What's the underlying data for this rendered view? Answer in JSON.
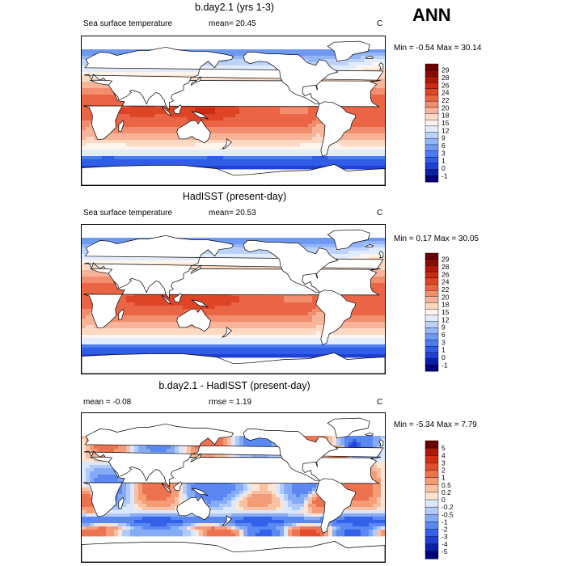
{
  "season": "ANN",
  "colors": {
    "full_palette": [
      "#00007a",
      "#0a1fa6",
      "#1f3fd6",
      "#2f5de8",
      "#4c7cf0",
      "#6f9af4",
      "#94b6f8",
      "#bcd2fb",
      "#e2ecfd",
      "#fff5ec",
      "#fcd9c2",
      "#f8b498",
      "#f28d6e",
      "#ea6545",
      "#de4426",
      "#cc2a12",
      "#b01806",
      "#8a0a00",
      "#6b0000"
    ],
    "diff_palette": [
      "#00007a",
      "#0a1fa6",
      "#1f3fd6",
      "#3361ea",
      "#5a87f1",
      "#85aaf6",
      "#b1cafa",
      "#dbe7fd",
      "#fde4d3",
      "#f9c1a4",
      "#f49b78",
      "#ed7350",
      "#e24d2c",
      "#cf2e13",
      "#b01806",
      "#6b0000"
    ],
    "land": "#ffffff",
    "coast": "#000000"
  },
  "panels": [
    {
      "title": "b.day2.1 (yrs 1-3)",
      "left_label": "Sea surface temperature",
      "stat_text": "mean=  20.45",
      "unit": "C",
      "minmax": "Min =  -0.54 Max =  30.14",
      "colorbar_labels": [
        "29",
        "28",
        "26",
        "24",
        "22",
        "20",
        "18",
        "15",
        "12",
        "9",
        "6",
        "3",
        "1",
        "0",
        "-1"
      ],
      "kind": "full"
    },
    {
      "title": "HadISST (present-day)",
      "left_label": "Sea surface temperature",
      "stat_text": "mean=  20.53",
      "unit": "C",
      "minmax": "Min =   0.17 Max =  30.05",
      "colorbar_labels": [
        "29",
        "28",
        "26",
        "24",
        "22",
        "20",
        "18",
        "15",
        "12",
        "9",
        "6",
        "3",
        "1",
        "0",
        "-1"
      ],
      "kind": "full"
    },
    {
      "title": "b.day2.1 - HadISST (present-day)",
      "left_label": "mean =  -0.08",
      "stat_text": "rmse =   1.19",
      "unit": "C",
      "minmax": "Min =  -5.34 Max =   7.79",
      "colorbar_labels": [
        "5",
        "4",
        "3",
        "2",
        "1",
        "0.5",
        "0.2",
        "0",
        "-0.2",
        "-0.5",
        "-1",
        "-2",
        "-3",
        "-4",
        "-5"
      ],
      "kind": "diff"
    }
  ],
  "chart_data": [
    {
      "type": "heatmap",
      "title": "b.day2.1 (yrs 1-3)",
      "variable": "Sea surface temperature",
      "units": "C",
      "mean": 20.45,
      "min": -0.54,
      "max": 30.14,
      "contour_levels": [
        -1,
        0,
        1,
        3,
        6,
        9,
        12,
        15,
        18,
        20,
        22,
        24,
        26,
        28,
        29
      ]
    },
    {
      "type": "heatmap",
      "title": "HadISST (present-day)",
      "variable": "Sea surface temperature",
      "units": "C",
      "mean": 20.53,
      "min": 0.17,
      "max": 30.05,
      "contour_levels": [
        -1,
        0,
        1,
        3,
        6,
        9,
        12,
        15,
        18,
        20,
        22,
        24,
        26,
        28,
        29
      ]
    },
    {
      "type": "heatmap",
      "title": "b.day2.1 - HadISST (present-day)",
      "units": "C",
      "mean": -0.08,
      "rmse": 1.19,
      "min": -5.34,
      "max": 7.79,
      "contour_levels": [
        -5,
        -4,
        -3,
        -2,
        -1,
        -0.5,
        -0.2,
        0,
        0.2,
        0.5,
        1,
        2,
        3,
        4,
        5
      ]
    }
  ]
}
